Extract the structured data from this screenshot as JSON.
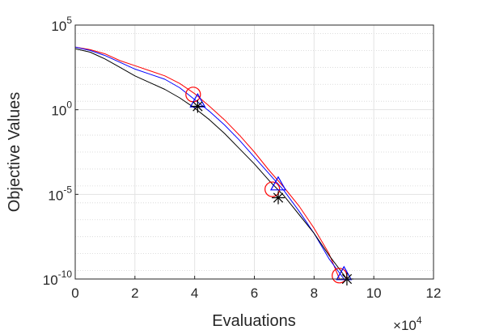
{
  "chart_data": {
    "type": "line",
    "title": "",
    "xlabel": "Evaluations",
    "ylabel": "Objective Values",
    "x_multiplier_label": {
      "times": "×",
      "base": "10",
      "exponent": "4"
    },
    "xlim": [
      0,
      12
    ],
    "ylim": [
      1e-10,
      100000.0
    ],
    "yscale": "log",
    "grid": true,
    "minor_grid": true,
    "x_ticks": [
      {
        "value": 0,
        "label": "0"
      },
      {
        "value": 2,
        "label": "2"
      },
      {
        "value": 4,
        "label": "4"
      },
      {
        "value": 6,
        "label": "6"
      },
      {
        "value": 8,
        "label": "8"
      },
      {
        "value": 10,
        "label": "10"
      },
      {
        "value": 12,
        "label": "12"
      }
    ],
    "y_ticks": [
      {
        "value": 100000.0,
        "base": "10",
        "exponent": "5"
      },
      {
        "value": 1,
        "base": "10",
        "exponent": "0"
      },
      {
        "value": 1e-05,
        "base": "10",
        "exponent": "-5"
      },
      {
        "value": 1e-10,
        "base": "10",
        "exponent": "-10"
      }
    ],
    "series": [
      {
        "color": "#ff0000",
        "marker": "circle",
        "x": [
          0,
          0.5,
          1,
          1.5,
          2,
          2.5,
          3,
          3.5,
          4,
          4.5,
          5,
          5.5,
          6,
          6.5,
          7,
          7.5,
          8,
          8.5,
          8.85
        ],
        "log10y": [
          3.7,
          3.55,
          3.3,
          2.9,
          2.6,
          2.3,
          2.0,
          1.55,
          0.95,
          0.2,
          -0.6,
          -1.5,
          -2.5,
          -3.6,
          -4.6,
          -5.7,
          -7.0,
          -8.5,
          -10.0
        ],
        "markers": [
          {
            "x": 3.95,
            "log10y": 0.9
          },
          {
            "x": 6.6,
            "log10y": -4.7
          },
          {
            "x": 8.85,
            "log10y": -9.8
          }
        ]
      },
      {
        "color": "#0000ff",
        "marker": "triangle",
        "x": [
          0,
          0.5,
          1,
          1.5,
          2,
          2.5,
          3,
          3.5,
          4,
          4.5,
          5,
          5.5,
          6,
          6.5,
          7,
          7.5,
          8,
          8.5,
          9.0
        ],
        "log10y": [
          3.7,
          3.5,
          3.2,
          2.8,
          2.4,
          2.1,
          1.8,
          1.3,
          0.6,
          -0.1,
          -0.9,
          -1.8,
          -2.8,
          -3.8,
          -4.8,
          -6.0,
          -7.3,
          -8.8,
          -10.0
        ],
        "markers": [
          {
            "x": 4.1,
            "log10y": 0.45
          },
          {
            "x": 6.8,
            "log10y": -4.45
          },
          {
            "x": 9.0,
            "log10y": -9.75
          }
        ]
      },
      {
        "color": "#000000",
        "marker": "asterisk",
        "x": [
          0,
          0.5,
          1,
          1.5,
          2,
          2.5,
          3,
          3.5,
          4,
          4.5,
          5,
          5.5,
          6,
          6.5,
          7,
          7.5,
          8,
          8.5,
          9.1
        ],
        "log10y": [
          3.6,
          3.4,
          3.0,
          2.5,
          2.0,
          1.6,
          1.2,
          0.7,
          0.1,
          -0.6,
          -1.4,
          -2.3,
          -3.2,
          -4.2,
          -5.1,
          -6.2,
          -7.3,
          -8.6,
          -10.0
        ],
        "markers": [
          {
            "x": 4.1,
            "log10y": 0.2
          },
          {
            "x": 6.8,
            "log10y": -5.2
          },
          {
            "x": 9.1,
            "log10y": -10.0
          }
        ]
      }
    ]
  }
}
